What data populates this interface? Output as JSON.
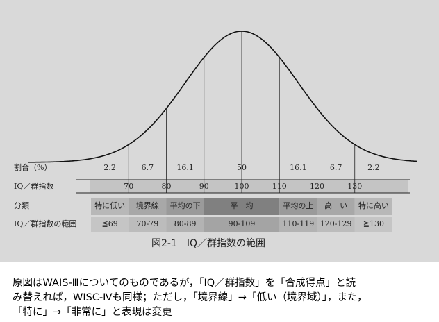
{
  "chart_data": {
    "type": "normal-bands",
    "row_labels": {
      "percent": "割合（%）",
      "iq": "IQ／群指数",
      "class": "分類",
      "range": "IQ／群指数の範囲"
    },
    "categories": [
      "特に低い",
      "境界線",
      "平均の下",
      "平　均",
      "平均の上",
      "高　い",
      "特に高い"
    ],
    "values": [
      2.2,
      6.7,
      16.1,
      50,
      16.1,
      6.7,
      2.2
    ],
    "ranges": [
      "≦69",
      "70-79",
      "80-89",
      "90-109",
      "110-119",
      "120-129",
      "≧130"
    ],
    "bins": [
      60,
      70,
      80,
      90,
      110,
      120,
      130,
      140
    ],
    "xlim": [
      60,
      140
    ],
    "xticks": [
      70,
      80,
      90,
      100,
      110,
      120,
      130
    ],
    "caption": "図2-1　IQ／群指数の範囲"
  },
  "note": [
    "原図はWAIS-Ⅲについてのものであるが，「IQ／群指数」を「合成得点」と読",
    "み替えれば，WISC-Ⅳも同様；ただし，「境界線」→「低い（境界域）」，また，",
    "「特に」→「非常に」と表現は変更"
  ]
}
